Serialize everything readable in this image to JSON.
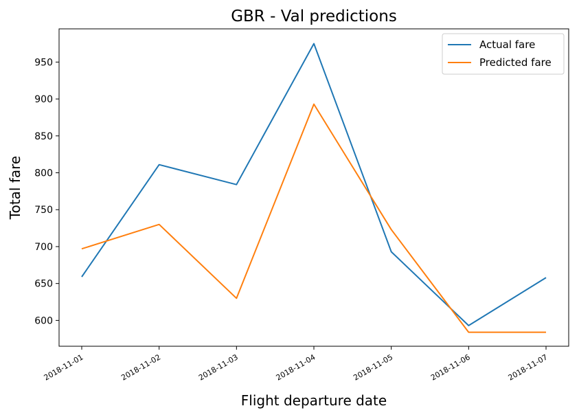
{
  "chart_data": {
    "type": "line",
    "title": "GBR - Val predictions",
    "xlabel": "Flight departure date",
    "ylabel": "Total fare",
    "categories": [
      "2018-11-01",
      "2018-11-02",
      "2018-11-03",
      "2018-11-04",
      "2018-11-05",
      "2018-11-06",
      "2018-11-07"
    ],
    "series": [
      {
        "name": "Actual fare",
        "color": "#1f77b4",
        "values": [
          659,
          811,
          784,
          975,
          693,
          593,
          658
        ]
      },
      {
        "name": "Predicted fare",
        "color": "#ff7f0e",
        "values": [
          697,
          730,
          630,
          893,
          723,
          584,
          584
        ]
      }
    ],
    "yticks": [
      600,
      650,
      700,
      750,
      800,
      850,
      900,
      950
    ],
    "ylim": [
      565,
      995
    ],
    "xtick_rotation": 30,
    "grid": false,
    "legend_position": "top-right"
  }
}
